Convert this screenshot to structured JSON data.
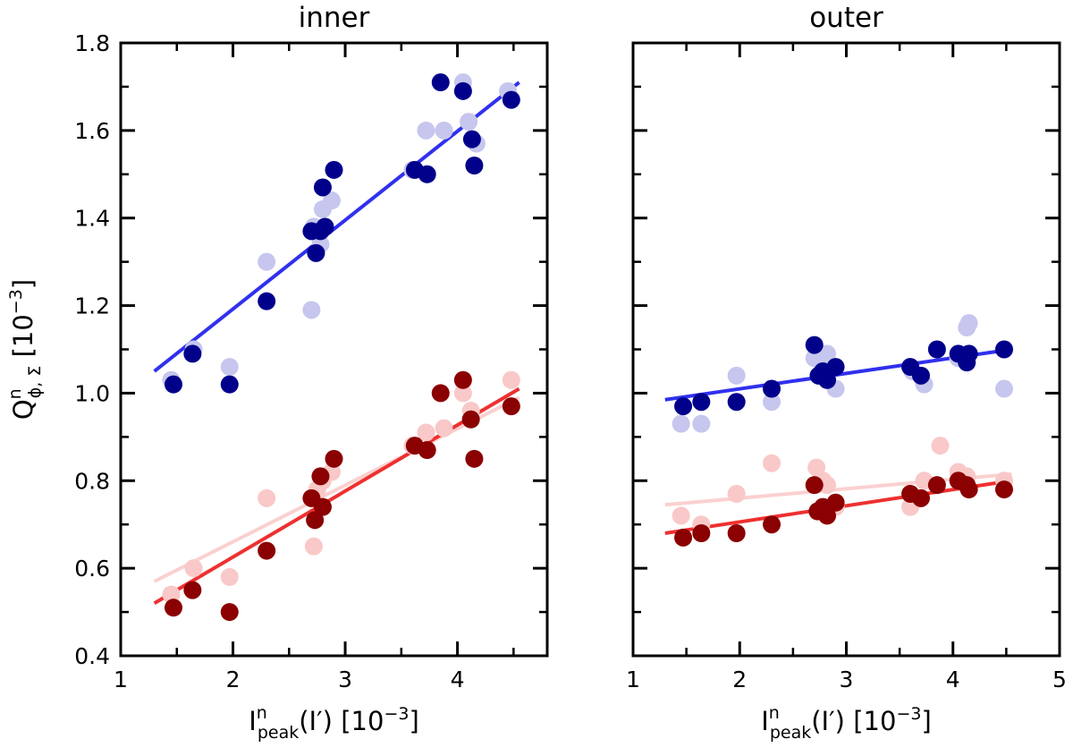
{
  "chart_data": [
    {
      "type": "scatter",
      "title": "inner",
      "xlabel": {
        "main": "I",
        "sup": "n",
        "sub": "peak",
        "rest": "(I′) [10",
        "exp": "−3",
        "close": "]"
      },
      "ylabel": {
        "main": "Q",
        "sup": "n",
        "sub": "ϕ, Σ",
        "rest": " [10",
        "exp": "−3",
        "close": "]"
      },
      "xlim": [
        1,
        4.8
      ],
      "ylim": [
        0.4,
        1.8
      ],
      "xticks": [
        1,
        2,
        3,
        4
      ],
      "yticks": [
        0.4,
        0.6,
        0.8,
        1.0,
        1.2,
        1.4,
        1.6,
        1.8
      ],
      "xtick_labels": [
        "1",
        "2",
        "3",
        "4"
      ],
      "ytick_labels": [
        "0.4",
        "0.6",
        "0.8",
        "1.0",
        "1.2",
        "1.4",
        "1.6",
        "1.8"
      ],
      "series": [
        {
          "name": "blue-faded",
          "color": "#c6c6ee",
          "points": [
            [
              1.45,
              1.03
            ],
            [
              1.65,
              1.1
            ],
            [
              1.97,
              1.06
            ],
            [
              2.3,
              1.3
            ],
            [
              2.7,
              1.19
            ],
            [
              2.72,
              1.38
            ],
            [
              2.78,
              1.34
            ],
            [
              2.8,
              1.42
            ],
            [
              2.88,
              1.44
            ],
            [
              3.6,
              1.51
            ],
            [
              3.72,
              1.6
            ],
            [
              3.88,
              1.6
            ],
            [
              4.05,
              1.71
            ],
            [
              4.1,
              1.62
            ],
            [
              4.17,
              1.57
            ],
            [
              4.45,
              1.69
            ]
          ]
        },
        {
          "name": "blue",
          "color": "#00008b",
          "points": [
            [
              1.47,
              1.02
            ],
            [
              1.64,
              1.09
            ],
            [
              1.97,
              1.02
            ],
            [
              2.3,
              1.21
            ],
            [
              2.7,
              1.37
            ],
            [
              2.74,
              1.32
            ],
            [
              2.78,
              1.37
            ],
            [
              2.8,
              1.47
            ],
            [
              2.82,
              1.38
            ],
            [
              2.9,
              1.51
            ],
            [
              3.62,
              1.51
            ],
            [
              3.73,
              1.5
            ],
            [
              3.85,
              1.71
            ],
            [
              4.05,
              1.69
            ],
            [
              4.13,
              1.58
            ],
            [
              4.15,
              1.52
            ],
            [
              4.48,
              1.67
            ]
          ]
        },
        {
          "name": "red-faded",
          "color": "#f9c8c8",
          "points": [
            [
              1.45,
              0.54
            ],
            [
              1.65,
              0.6
            ],
            [
              1.97,
              0.58
            ],
            [
              2.3,
              0.76
            ],
            [
              2.72,
              0.65
            ],
            [
              2.75,
              0.78
            ],
            [
              2.8,
              0.8
            ],
            [
              2.88,
              0.82
            ],
            [
              3.6,
              0.88
            ],
            [
              3.72,
              0.91
            ],
            [
              3.88,
              0.92
            ],
            [
              4.05,
              1.0
            ],
            [
              4.12,
              0.96
            ],
            [
              4.48,
              1.03
            ]
          ]
        },
        {
          "name": "red",
          "color": "#8b0000",
          "points": [
            [
              1.47,
              0.51
            ],
            [
              1.64,
              0.55
            ],
            [
              1.97,
              0.5
            ],
            [
              2.3,
              0.64
            ],
            [
              2.7,
              0.76
            ],
            [
              2.73,
              0.71
            ],
            [
              2.78,
              0.81
            ],
            [
              2.8,
              0.74
            ],
            [
              2.9,
              0.85
            ],
            [
              3.62,
              0.88
            ],
            [
              3.73,
              0.87
            ],
            [
              3.85,
              1.0
            ],
            [
              4.05,
              1.03
            ],
            [
              4.12,
              0.94
            ],
            [
              4.15,
              0.85
            ],
            [
              4.48,
              0.97
            ]
          ]
        }
      ],
      "fits": [
        {
          "color": "#3030ee",
          "x": [
            1.3,
            4.55
          ],
          "y": [
            1.05,
            1.71
          ]
        },
        {
          "color": "#fbd0d0",
          "x": [
            1.3,
            4.55
          ],
          "y": [
            0.57,
            0.99
          ]
        },
        {
          "color": "#ee3030",
          "x": [
            1.3,
            4.55
          ],
          "y": [
            0.52,
            1.01
          ]
        }
      ]
    },
    {
      "type": "scatter",
      "title": "outer",
      "xlabel": {
        "main": "I",
        "sup": "n",
        "sub": "peak",
        "rest": "(I′) [10",
        "exp": "−3",
        "close": "]"
      },
      "xlim": [
        1,
        5
      ],
      "ylim": [
        0.4,
        1.8
      ],
      "xticks": [
        1,
        2,
        3,
        4,
        5
      ],
      "yticks": [
        0.4,
        0.6,
        0.8,
        1.0,
        1.2,
        1.4,
        1.6,
        1.8
      ],
      "xtick_labels": [
        "1",
        "2",
        "3",
        "4",
        "5"
      ],
      "ytick_labels": [],
      "series": [
        {
          "name": "blue-faded",
          "color": "#c6c6ee",
          "points": [
            [
              1.45,
              0.93
            ],
            [
              1.64,
              0.93
            ],
            [
              1.97,
              1.04
            ],
            [
              2.3,
              0.98
            ],
            [
              2.7,
              1.08
            ],
            [
              2.78,
              1.06
            ],
            [
              2.82,
              1.09
            ],
            [
              2.9,
              1.01
            ],
            [
              3.62,
              1.05
            ],
            [
              3.73,
              1.02
            ],
            [
              4.05,
              1.08
            ],
            [
              4.13,
              1.15
            ],
            [
              4.15,
              1.16
            ],
            [
              4.48,
              1.01
            ]
          ]
        },
        {
          "name": "blue",
          "color": "#00008b",
          "points": [
            [
              1.47,
              0.97
            ],
            [
              1.64,
              0.98
            ],
            [
              1.97,
              0.98
            ],
            [
              2.3,
              1.01
            ],
            [
              2.7,
              1.11
            ],
            [
              2.74,
              1.04
            ],
            [
              2.78,
              1.05
            ],
            [
              2.82,
              1.03
            ],
            [
              2.9,
              1.06
            ],
            [
              3.6,
              1.06
            ],
            [
              3.7,
              1.04
            ],
            [
              3.85,
              1.1
            ],
            [
              4.05,
              1.09
            ],
            [
              4.13,
              1.07
            ],
            [
              4.15,
              1.09
            ],
            [
              4.48,
              1.1
            ]
          ]
        },
        {
          "name": "red-faded",
          "color": "#f9c8c8",
          "points": [
            [
              1.45,
              0.72
            ],
            [
              1.64,
              0.7
            ],
            [
              1.97,
              0.77
            ],
            [
              2.3,
              0.84
            ],
            [
              2.72,
              0.83
            ],
            [
              2.78,
              0.8
            ],
            [
              2.82,
              0.79
            ],
            [
              2.9,
              0.74
            ],
            [
              3.6,
              0.74
            ],
            [
              3.73,
              0.8
            ],
            [
              3.88,
              0.88
            ],
            [
              4.05,
              0.82
            ],
            [
              4.13,
              0.81
            ],
            [
              4.48,
              0.8
            ]
          ]
        },
        {
          "name": "red",
          "color": "#8b0000",
          "points": [
            [
              1.47,
              0.67
            ],
            [
              1.64,
              0.68
            ],
            [
              1.97,
              0.68
            ],
            [
              2.3,
              0.7
            ],
            [
              2.7,
              0.79
            ],
            [
              2.73,
              0.73
            ],
            [
              2.78,
              0.74
            ],
            [
              2.82,
              0.72
            ],
            [
              2.9,
              0.75
            ],
            [
              3.6,
              0.77
            ],
            [
              3.7,
              0.76
            ],
            [
              3.85,
              0.79
            ],
            [
              4.05,
              0.8
            ],
            [
              4.13,
              0.79
            ],
            [
              4.15,
              0.78
            ],
            [
              4.48,
              0.78
            ]
          ]
        }
      ],
      "fits": [
        {
          "color": "#3030ee",
          "x": [
            1.3,
            4.55
          ],
          "y": [
            0.985,
            1.1
          ]
        },
        {
          "color": "#fbd0d0",
          "x": [
            1.3,
            4.55
          ],
          "y": [
            0.745,
            0.815
          ]
        },
        {
          "color": "#ee3030",
          "x": [
            1.3,
            4.55
          ],
          "y": [
            0.68,
            0.8
          ]
        }
      ]
    }
  ]
}
